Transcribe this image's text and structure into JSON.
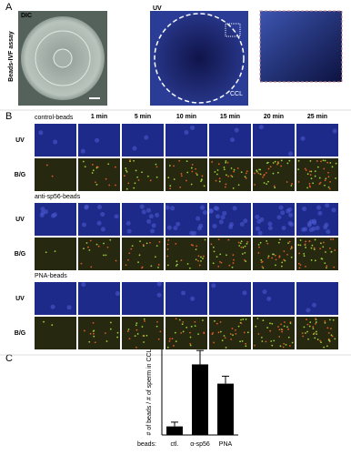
{
  "panel_a": {
    "label": "A",
    "side_label": "Beads-IVF assay",
    "dic": "DIC",
    "uv": "UV",
    "ccl": "CCL"
  },
  "panel_b": {
    "label": "B",
    "columns": [
      "1 min",
      "5 min",
      "10 min",
      "15 min",
      "20 min",
      "25 min"
    ],
    "groups": [
      "control-beads",
      "anti-sp56-beads",
      "PNA-beads"
    ],
    "rows": [
      "UV",
      "B/G"
    ]
  },
  "panel_c": {
    "label": "C",
    "chart_data": {
      "type": "bar",
      "y_label": "# of beads / # of sperm in CCL",
      "x_prefix": "beads:",
      "categories": [
        "ctl.",
        "α-sp56",
        "PNA"
      ],
      "values": [
        0.08,
        0.66,
        0.48
      ],
      "errors": [
        0.04,
        0.13,
        0.07
      ],
      "color": "#000000",
      "ylim": [
        0,
        0.8
      ]
    }
  }
}
